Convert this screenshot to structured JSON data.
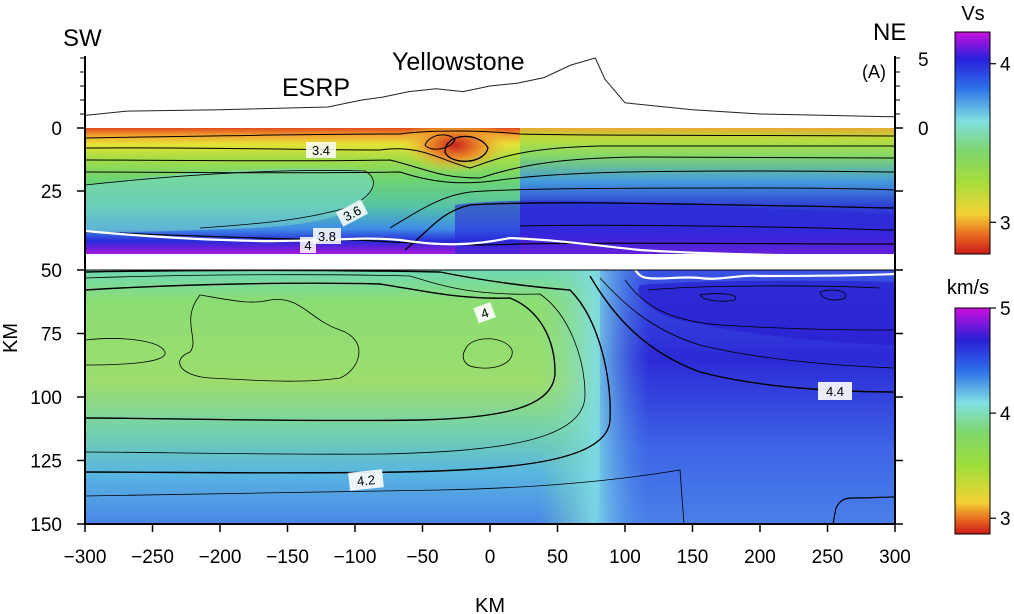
{
  "chart_data": {
    "type": "heatmap",
    "title": "",
    "xlabel": "KM",
    "ylabel": "KM",
    "xlim": [
      -300,
      300
    ],
    "x_ticks": [
      -300,
      -250,
      -200,
      -150,
      -100,
      -50,
      0,
      50,
      100,
      150,
      200,
      250,
      300
    ],
    "x_tick_labels": [
      "−300",
      "−250",
      "−200",
      "−150",
      "−100",
      "−50",
      "0",
      "50",
      "100",
      "150",
      "200",
      "250",
      "300"
    ],
    "panels": {
      "top": {
        "ylim": [
          0,
          50
        ],
        "y_ticks": [
          0,
          25
        ],
        "colorbar": {
          "label": "Vs",
          "range": [
            2.8,
            4.2
          ],
          "ticks": [
            "3",
            "4"
          ],
          "unit": ""
        },
        "contour_labels": [
          "3.4",
          "3.6",
          "3.8",
          "4"
        ]
      },
      "bottom": {
        "ylim": [
          50,
          150
        ],
        "y_ticks": [
          50,
          75,
          100,
          125,
          150
        ],
        "colorbar": {
          "label": "km/s",
          "range": [
            2.85,
            5.0
          ],
          "ticks": [
            "3",
            "4",
            "5"
          ],
          "unit": "km/s"
        },
        "contour_labels": [
          "4",
          "4.4",
          "4.2"
        ]
      }
    },
    "topography": {
      "right_axis_ticks": [
        "5",
        "0"
      ],
      "profile_x": [
        -300,
        -270,
        -200,
        -120,
        -95,
        -80,
        -60,
        -40,
        -20,
        0,
        20,
        40,
        60,
        78,
        85,
        100,
        150,
        200,
        250,
        300
      ],
      "profile_km": [
        0.9,
        1.2,
        1.3,
        1.5,
        2.0,
        2.2,
        2.6,
        2.8,
        2.6,
        3.0,
        3.2,
        3.6,
        4.5,
        5.0,
        3.5,
        1.8,
        1.3,
        1.0,
        0.9,
        0.8
      ]
    },
    "annotations": {
      "left_label": "SW",
      "right_label": "NE",
      "panel_tag": "(A)",
      "region1": "Yellowstone",
      "region2": "ESRP"
    }
  }
}
